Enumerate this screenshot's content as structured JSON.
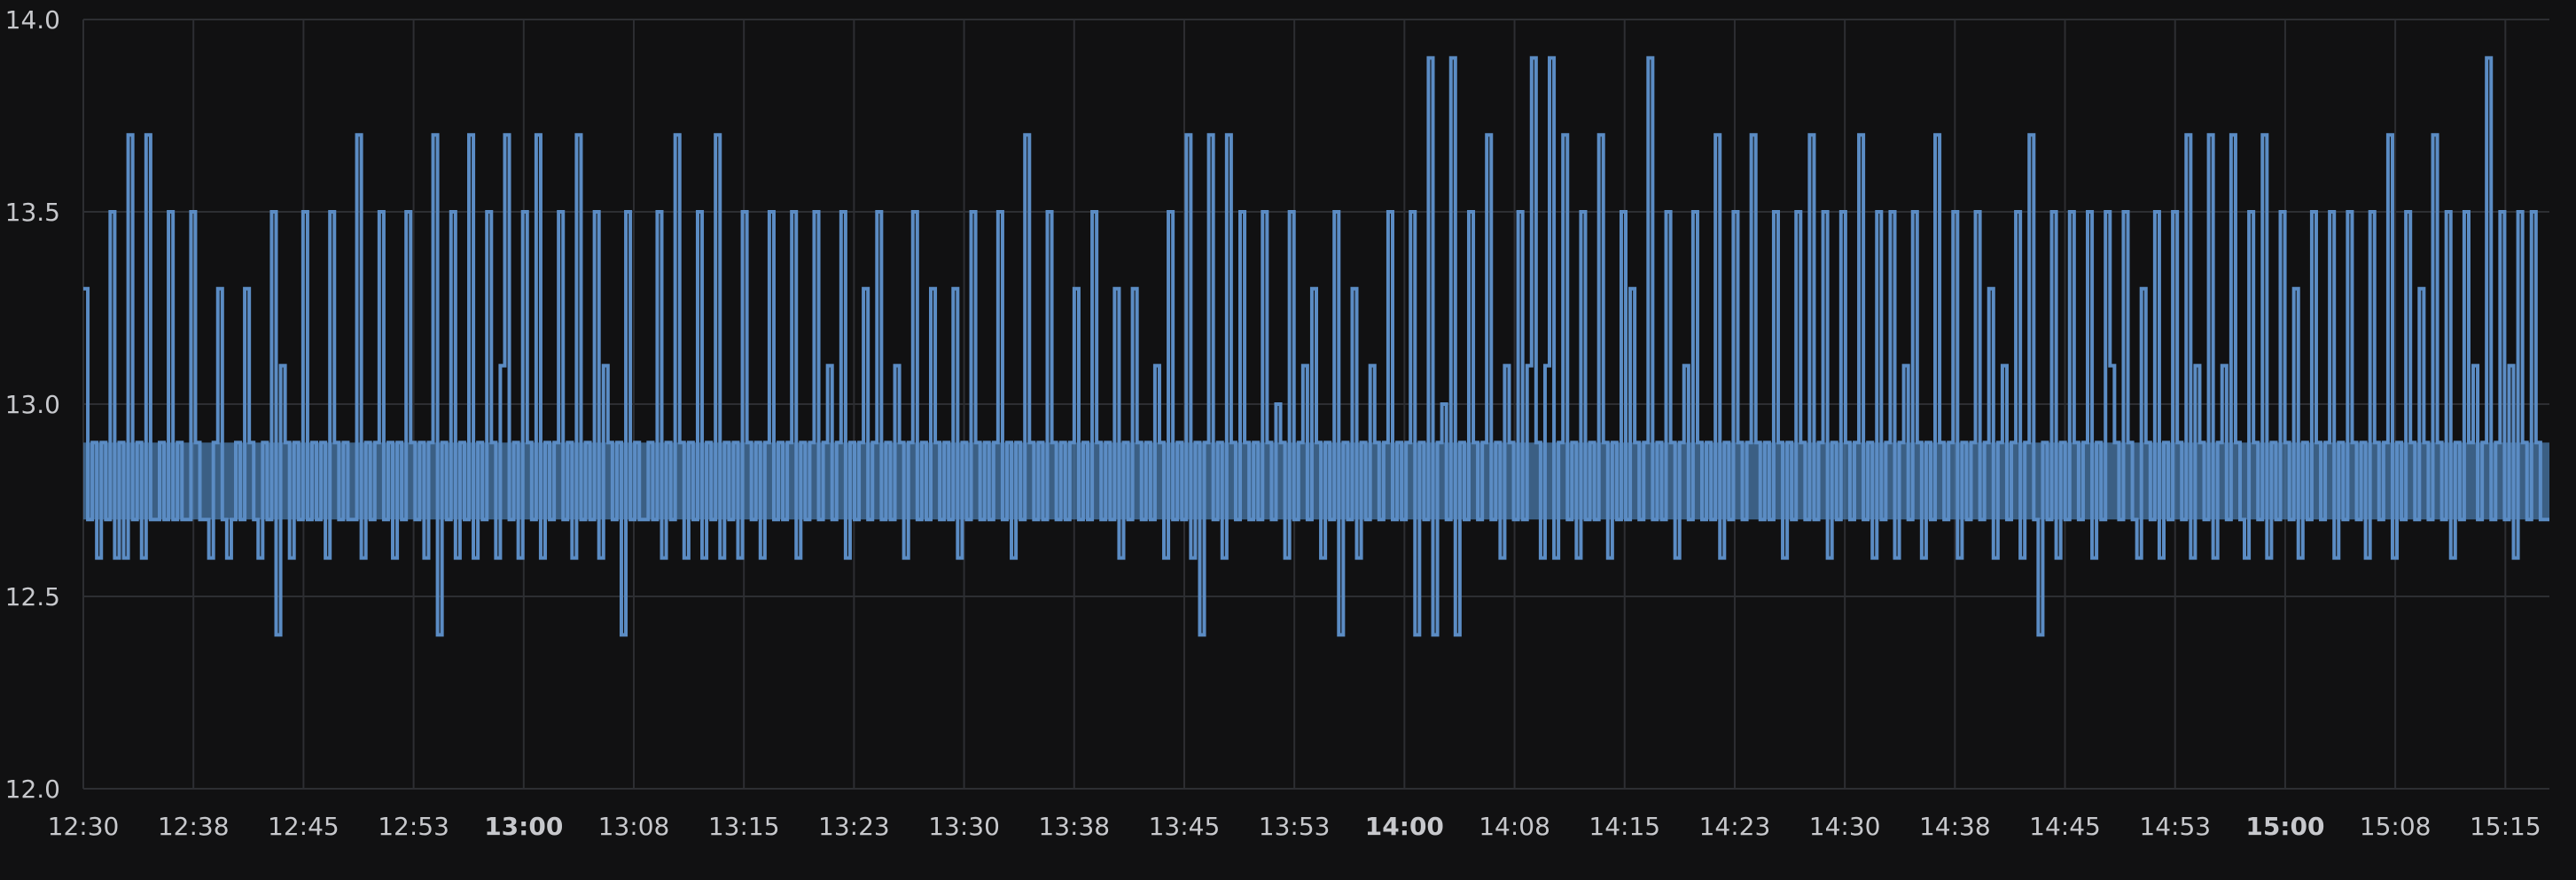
{
  "chart_data": {
    "type": "line",
    "title": "",
    "xlabel": "",
    "ylabel": "",
    "ylim": [
      12.0,
      14.0
    ],
    "y_ticks": [
      "12.0",
      "12.5",
      "13.0",
      "13.5",
      "14.0"
    ],
    "x_range": [
      "12:30",
      "15:18"
    ],
    "x_ticks": [
      {
        "label": "12:30",
        "bold": false
      },
      {
        "label": "12:38",
        "bold": false
      },
      {
        "label": "12:45",
        "bold": false
      },
      {
        "label": "12:53",
        "bold": false
      },
      {
        "label": "13:00",
        "bold": true
      },
      {
        "label": "13:08",
        "bold": false
      },
      {
        "label": "13:15",
        "bold": false
      },
      {
        "label": "13:23",
        "bold": false
      },
      {
        "label": "13:30",
        "bold": false
      },
      {
        "label": "13:38",
        "bold": false
      },
      {
        "label": "13:45",
        "bold": false
      },
      {
        "label": "13:53",
        "bold": false
      },
      {
        "label": "14:00",
        "bold": true
      },
      {
        "label": "14:08",
        "bold": false
      },
      {
        "label": "14:15",
        "bold": false
      },
      {
        "label": "14:23",
        "bold": false
      },
      {
        "label": "14:30",
        "bold": false
      },
      {
        "label": "14:38",
        "bold": false
      },
      {
        "label": "14:45",
        "bold": false
      },
      {
        "label": "14:53",
        "bold": false
      },
      {
        "label": "15:00",
        "bold": true
      },
      {
        "label": "15:08",
        "bold": false
      },
      {
        "label": "15:15",
        "bold": false
      }
    ],
    "grid": true,
    "legend": "none",
    "step": true,
    "series": [
      {
        "color": "#5b8cc4",
        "values": [
          13.3,
          12.7,
          12.9,
          12.6,
          12.9,
          12.7,
          13.5,
          12.6,
          12.9,
          12.6,
          13.7,
          12.7,
          12.9,
          12.6,
          13.7,
          12.7,
          12.7,
          12.9,
          12.7,
          13.5,
          12.7,
          12.9,
          12.7,
          12.7,
          13.5,
          12.9,
          12.7,
          12.7,
          12.6,
          12.9,
          13.3,
          12.7,
          12.6,
          12.7,
          12.9,
          12.7,
          13.3,
          12.9,
          12.7,
          12.6,
          12.9,
          12.7,
          13.5,
          12.4,
          13.1,
          12.9,
          12.6,
          12.9,
          12.7,
          13.5,
          12.7,
          12.9,
          12.7,
          12.9,
          12.6,
          13.5,
          12.9,
          12.7,
          12.9,
          12.7,
          12.7,
          13.7,
          12.6,
          12.9,
          12.7,
          12.9,
          13.5,
          12.7,
          12.9,
          12.6,
          12.9,
          12.7,
          13.5,
          12.9,
          12.7,
          12.9,
          12.6,
          12.9,
          13.7,
          12.4,
          12.9,
          12.7,
          13.5,
          12.6,
          12.9,
          12.7,
          13.7,
          12.6,
          12.9,
          12.7,
          13.5,
          12.9,
          12.6,
          13.1,
          13.7,
          12.7,
          12.9,
          12.6,
          13.5,
          12.9,
          12.7,
          13.7,
          12.6,
          12.9,
          12.7,
          12.9,
          13.5,
          12.7,
          12.9,
          12.6,
          13.7,
          12.7,
          12.9,
          12.7,
          13.5,
          12.6,
          13.1,
          12.9,
          12.7,
          12.9,
          12.4,
          13.5,
          12.7,
          12.9,
          12.7,
          12.7,
          12.9,
          12.7,
          13.5,
          12.6,
          12.9,
          12.7,
          13.7,
          12.9,
          12.6,
          12.9,
          12.7,
          13.5,
          12.6,
          12.9,
          12.7,
          13.7,
          12.6,
          12.9,
          12.7,
          12.9,
          12.6,
          13.5,
          12.9,
          12.7,
          12.9,
          12.6,
          12.9,
          13.5,
          12.7,
          12.9,
          12.7,
          12.9,
          13.5,
          12.6,
          12.9,
          12.7,
          12.9,
          13.5,
          12.7,
          12.9,
          13.1,
          12.7,
          12.9,
          13.5,
          12.6,
          12.9,
          12.7,
          12.9,
          13.3,
          12.7,
          12.9,
          13.5,
          12.7,
          12.9,
          12.7,
          13.1,
          12.9,
          12.6,
          12.9,
          13.5,
          12.7,
          12.9,
          12.7,
          13.3,
          12.9,
          12.7,
          12.9,
          12.7,
          13.3,
          12.6,
          12.9,
          12.7,
          13.5,
          12.9,
          12.7,
          12.9,
          12.7,
          12.9,
          13.5,
          12.7,
          12.9,
          12.6,
          12.9,
          12.7,
          13.7,
          12.9,
          12.7,
          12.9,
          12.7,
          13.5,
          12.9,
          12.7,
          12.9,
          12.7,
          12.9,
          13.3,
          12.7,
          12.9,
          12.7,
          13.5,
          12.9,
          12.7,
          12.9,
          12.7,
          13.3,
          12.6,
          12.9,
          12.7,
          13.3,
          12.9,
          12.7,
          12.9,
          12.7,
          13.1,
          12.9,
          12.6,
          13.5,
          12.7,
          12.9,
          12.7,
          13.7,
          12.6,
          12.9,
          12.4,
          12.9,
          13.7,
          12.7,
          12.9,
          12.6,
          13.7,
          12.9,
          12.7,
          13.5,
          12.9,
          12.7,
          12.9,
          12.7,
          13.5,
          12.9,
          12.7,
          13.0,
          12.9,
          12.6,
          13.5,
          12.7,
          12.9,
          13.1,
          12.7,
          13.3,
          12.9,
          12.6,
          12.9,
          12.7,
          13.5,
          12.4,
          12.9,
          12.7,
          13.3,
          12.6,
          12.9,
          12.7,
          13.1,
          12.9,
          12.7,
          12.9,
          13.5,
          12.7,
          12.9,
          12.7,
          12.9,
          13.5,
          12.4,
          12.9,
          12.7,
          13.9,
          12.4,
          12.9,
          13.0,
          12.7,
          13.9,
          12.4,
          12.9,
          12.7,
          13.5,
          12.9,
          12.7,
          12.9,
          13.7,
          12.7,
          12.9,
          12.6,
          13.1,
          12.9,
          12.7,
          13.5,
          12.7,
          13.1,
          13.9,
          12.9,
          12.6,
          13.1,
          13.9,
          12.6,
          12.9,
          13.7,
          12.7,
          12.9,
          12.6,
          13.5,
          12.7,
          12.9,
          12.7,
          13.7,
          12.9,
          12.6,
          12.9,
          12.7,
          13.5,
          12.7,
          13.3,
          12.9,
          12.7,
          12.9,
          13.9,
          12.7,
          12.9,
          12.7,
          13.5,
          12.9,
          12.6,
          12.9,
          13.1,
          12.7,
          13.5,
          12.9,
          12.7,
          12.9,
          12.7,
          13.7,
          12.6,
          12.9,
          12.7,
          13.5,
          12.9,
          12.7,
          12.9,
          13.7,
          12.9,
          12.7,
          12.9,
          12.7,
          13.5,
          12.9,
          12.6,
          12.9,
          12.7,
          13.5,
          12.9,
          12.7,
          13.7,
          12.7,
          12.9,
          13.5,
          12.6,
          12.9,
          12.7,
          13.5,
          12.9,
          12.7,
          12.9,
          13.7,
          12.7,
          12.9,
          12.6,
          13.5,
          12.7,
          12.9,
          13.5,
          12.6,
          12.9,
          13.1,
          12.7,
          13.5,
          12.9,
          12.6,
          12.9,
          12.7,
          13.7,
          12.9,
          12.7,
          12.9,
          13.5,
          12.6,
          12.9,
          12.7,
          12.9,
          13.5,
          12.7,
          12.9,
          13.3,
          12.6,
          12.9,
          13.1,
          12.7,
          12.9,
          13.5,
          12.6,
          12.9,
          13.7,
          12.7,
          12.4,
          12.9,
          12.7,
          13.5,
          12.6,
          12.9,
          12.7,
          13.5,
          12.9,
          12.7,
          12.9,
          13.5,
          12.6,
          12.9,
          12.7,
          13.5,
          13.1,
          12.9,
          12.7,
          13.5,
          12.9,
          12.7,
          12.6,
          13.3,
          12.9,
          12.7,
          13.5,
          12.6,
          12.9,
          12.7,
          13.5,
          12.9,
          12.7,
          13.7,
          12.6,
          13.1,
          12.9,
          12.7,
          13.7,
          12.6,
          12.9,
          13.1,
          12.7,
          13.7,
          12.9,
          12.7,
          12.6,
          13.5,
          12.9,
          12.7,
          13.7,
          12.6,
          12.9,
          12.7,
          13.5,
          12.9,
          12.7,
          13.3,
          12.6,
          12.9,
          12.7,
          13.5,
          12.9,
          12.7,
          12.9,
          13.5,
          12.6,
          12.9,
          12.7,
          13.5,
          12.9,
          12.7,
          12.9,
          12.6,
          13.5,
          12.9,
          12.7,
          12.9,
          13.7,
          12.6,
          12.9,
          12.7,
          13.5,
          12.9,
          12.7,
          13.3,
          12.9,
          12.7,
          13.7,
          12.9,
          12.7,
          13.5,
          12.6,
          12.9,
          12.7,
          13.5,
          12.9,
          13.1,
          12.7,
          12.9,
          13.9,
          12.7,
          12.9,
          13.5,
          12.7,
          13.1,
          12.6,
          13.5,
          12.9,
          12.7,
          13.5,
          12.9,
          12.7,
          12.7
        ]
      }
    ]
  }
}
